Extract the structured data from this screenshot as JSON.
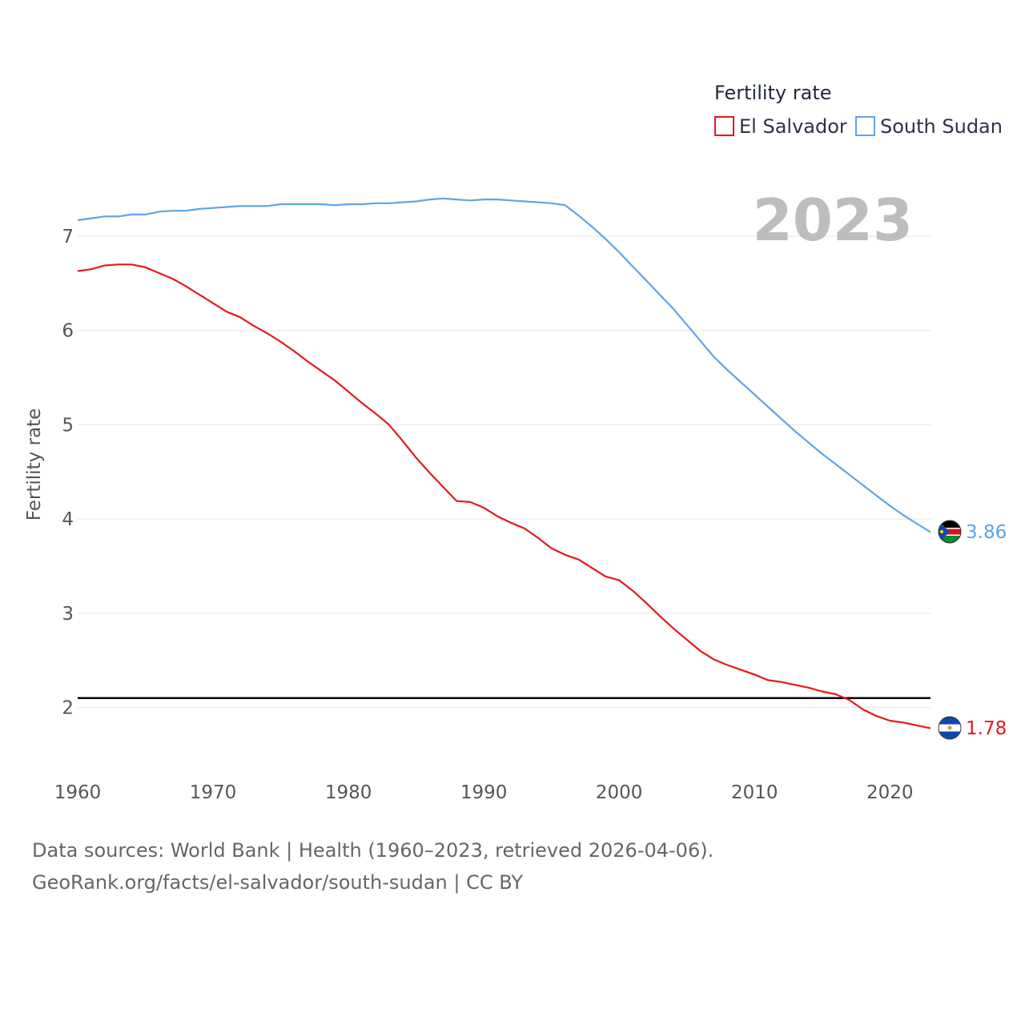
{
  "chart_data": {
    "type": "line",
    "ylabel": "Fertility rate",
    "xlim": [
      1960,
      2023
    ],
    "ylim": [
      1.2,
      7.6
    ],
    "x_ticks": [
      1960,
      1970,
      1980,
      1990,
      2000,
      2010,
      2020
    ],
    "y_ticks": [
      2,
      3,
      4,
      5,
      6,
      7
    ],
    "reference_line": {
      "value": 2.1
    },
    "year_label": "2023",
    "legend": {
      "title": "Fertility rate",
      "placement": "top-right"
    },
    "x": [
      1960,
      1961,
      1962,
      1963,
      1964,
      1965,
      1966,
      1967,
      1968,
      1969,
      1970,
      1971,
      1972,
      1973,
      1974,
      1975,
      1976,
      1977,
      1978,
      1979,
      1980,
      1981,
      1982,
      1983,
      1984,
      1985,
      1986,
      1987,
      1988,
      1989,
      1990,
      1991,
      1992,
      1993,
      1994,
      1995,
      1996,
      1997,
      1998,
      1999,
      2000,
      2001,
      2002,
      2003,
      2004,
      2005,
      2006,
      2007,
      2008,
      2009,
      2010,
      2011,
      2012,
      2013,
      2014,
      2015,
      2016,
      2017,
      2018,
      2019,
      2020,
      2021,
      2022,
      2023
    ],
    "series": [
      {
        "name": "El Salvador",
        "color": "#e31a1c",
        "end_label": "1.78",
        "values": [
          6.63,
          6.65,
          6.69,
          6.7,
          6.7,
          6.67,
          6.61,
          6.55,
          6.47,
          6.38,
          6.29,
          6.2,
          6.14,
          6.05,
          5.97,
          5.88,
          5.78,
          5.67,
          5.57,
          5.47,
          5.35,
          5.23,
          5.12,
          5.0,
          4.83,
          4.65,
          4.49,
          4.34,
          4.19,
          4.18,
          4.12,
          4.03,
          3.96,
          3.9,
          3.8,
          3.69,
          3.62,
          3.57,
          3.48,
          3.39,
          3.35,
          3.24,
          3.11,
          2.97,
          2.84,
          2.72,
          2.6,
          2.51,
          2.45,
          2.4,
          2.35,
          2.29,
          2.27,
          2.24,
          2.21,
          2.17,
          2.14,
          2.08,
          1.98,
          1.91,
          1.86,
          1.84,
          1.81,
          1.78
        ]
      },
      {
        "name": "South Sudan",
        "color": "#5fa4e6",
        "end_label": "3.86",
        "values": [
          7.17,
          7.19,
          7.21,
          7.21,
          7.23,
          7.23,
          7.26,
          7.27,
          7.27,
          7.29,
          7.3,
          7.31,
          7.32,
          7.32,
          7.32,
          7.34,
          7.34,
          7.34,
          7.34,
          7.33,
          7.34,
          7.34,
          7.35,
          7.35,
          7.36,
          7.37,
          7.39,
          7.4,
          7.39,
          7.38,
          7.39,
          7.39,
          7.38,
          7.37,
          7.36,
          7.35,
          7.33,
          7.22,
          7.1,
          6.97,
          6.83,
          6.68,
          6.53,
          6.38,
          6.23,
          6.06,
          5.89,
          5.72,
          5.58,
          5.45,
          5.32,
          5.19,
          5.06,
          4.93,
          4.81,
          4.69,
          4.58,
          4.47,
          4.36,
          4.25,
          4.14,
          4.04,
          3.95,
          3.86
        ]
      }
    ]
  },
  "source": {
    "line1": "Data sources: World Bank | Health (1960–2023, retrieved 2026-04-06).",
    "line2": "GeoRank.org/facts/el-salvador/south-sudan | CC BY"
  }
}
